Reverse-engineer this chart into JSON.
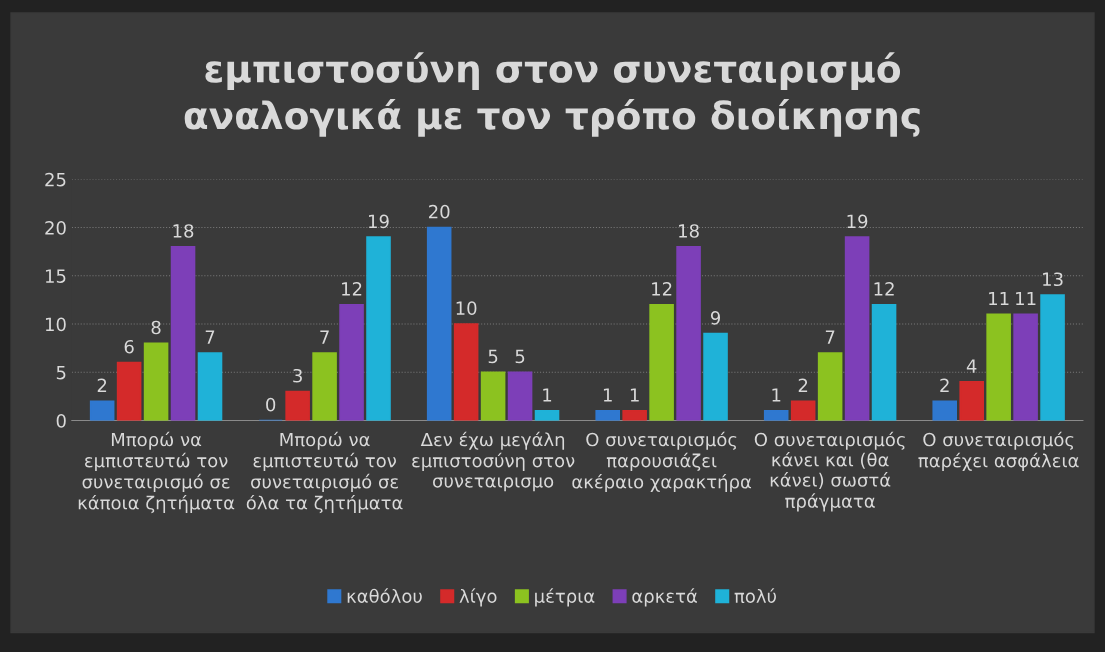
{
  "chart_data": {
    "type": "bar",
    "title": "εμπιστοσύνη στον συνεταιρισμό αναλογικά με τον τρόπο διοίκησης",
    "categories": [
      "Μπορώ να εμπιστευτώ τον συνεταιρισμό σε κάποια ζητήματα",
      "Μπορώ να εμπιστευτώ τον συνεταιρισμό σε όλα τα ζητήματα",
      "Δεν έχω μεγάλη εμπιστοσύνη στον συνεταιρισμο",
      "Ο συνεταιρισμός παρουσιάζει ακέραιο χαρακτήρα",
      "Ο συνεταιρισμός κάνει και (θα κάνει) σωστά πράγματα",
      "Ο συνεταιρισμός παρέχει ασφάλεια"
    ],
    "series": [
      {
        "name": "καθόλου",
        "color": "#2f78d0",
        "values": [
          2,
          0,
          20,
          1,
          1,
          2
        ]
      },
      {
        "name": "λίγο",
        "color": "#d42a2a",
        "values": [
          6,
          3,
          10,
          1,
          2,
          4
        ]
      },
      {
        "name": "μέτρια",
        "color": "#8cc220",
        "values": [
          8,
          7,
          5,
          12,
          7,
          11
        ]
      },
      {
        "name": "αρκετά",
        "color": "#7d3fb8",
        "values": [
          18,
          12,
          5,
          18,
          19,
          11
        ]
      },
      {
        "name": "πολύ",
        "color": "#1fb2d8",
        "values": [
          7,
          19,
          1,
          9,
          12,
          13
        ]
      }
    ],
    "ylim": [
      0,
      25
    ],
    "yticks": [
      0,
      5,
      10,
      15,
      20,
      25
    ],
    "grid": "y",
    "legend": "bottom",
    "data_labels": true
  }
}
